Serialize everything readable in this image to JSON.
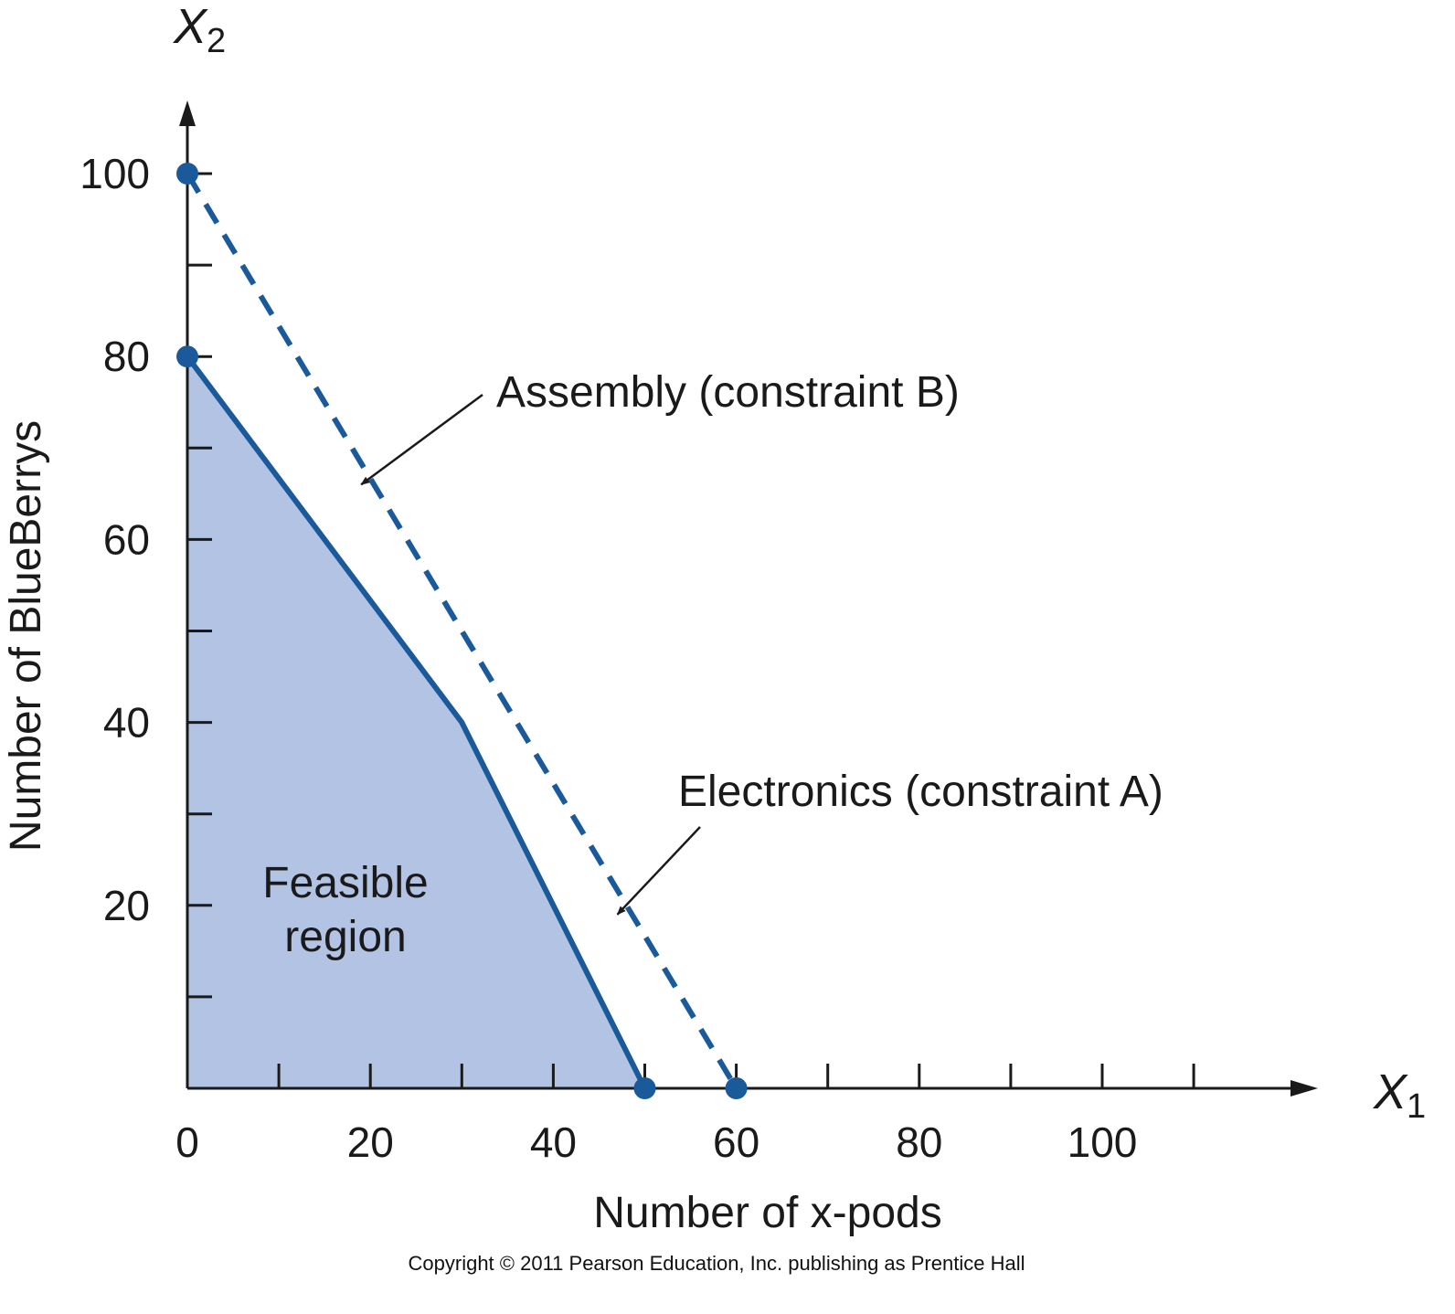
{
  "chart_data": {
    "type": "line",
    "x_axis": {
      "var": "X",
      "sub": "1",
      "label": "Number of x-pods",
      "range": [
        0,
        120
      ],
      "tick_labels": [
        0,
        20,
        40,
        60,
        80,
        100
      ],
      "minor_ticks": [
        10,
        30,
        50,
        70,
        90,
        110
      ]
    },
    "y_axis": {
      "var": "X",
      "sub": "2",
      "label": "Number of BlueBerrys",
      "range": [
        0,
        110
      ],
      "tick_labels": [
        20,
        40,
        60,
        80,
        100
      ],
      "minor_ticks": [
        10,
        30,
        50,
        70,
        90
      ]
    },
    "series": [
      {
        "name": "Electronics (constraint A)",
        "style": "solid",
        "points": [
          [
            0,
            80
          ],
          [
            30,
            40
          ],
          [
            50,
            0
          ]
        ]
      },
      {
        "name": "Assembly (constraint B)",
        "style": "dashed",
        "points": [
          [
            0,
            100
          ],
          [
            60,
            0
          ]
        ]
      }
    ],
    "feasible_region": {
      "label_line1": "Feasible",
      "label_line2": "region",
      "polygon": [
        [
          0,
          0
        ],
        [
          0,
          80
        ],
        [
          30,
          40
        ],
        [
          50,
          0
        ]
      ]
    },
    "endpoints": [
      [
        0,
        100
      ],
      [
        0,
        80
      ],
      [
        50,
        0
      ],
      [
        60,
        0
      ]
    ],
    "annotations": [
      {
        "text": "Assembly (constraint B)",
        "arrow_to": [
          19,
          66
        ]
      },
      {
        "text": "Electronics (constraint A)",
        "arrow_to": [
          47,
          19
        ]
      }
    ],
    "colors": {
      "line": "#1a5a9a",
      "fill": "#b3c3e3",
      "axis": "#1a1a1a"
    }
  },
  "footer": {
    "copyright": "Copyright © 2011 Pearson Education, Inc. publishing as Prentice Hall"
  }
}
